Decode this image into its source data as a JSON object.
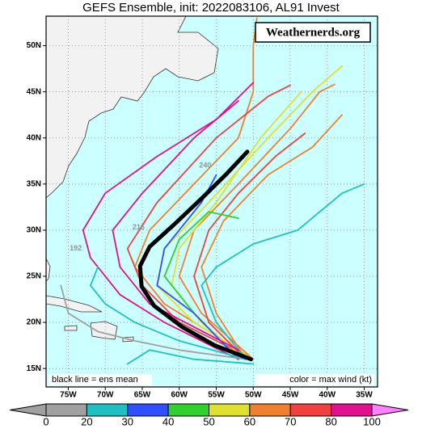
{
  "chart_data": {
    "type": "track-map",
    "title": "GEFS Ensemble, init: 2022083106, AL91 Invest",
    "watermark": "Weathernerds.org",
    "note_left": "black line = ens mean",
    "note_right": "color = max wind (kt)",
    "xlim": [
      -78,
      -33.2
    ],
    "ylim": [
      13,
      53.2
    ],
    "xticks": [
      {
        "value": -75,
        "label": "75W"
      },
      {
        "value": -70,
        "label": "70W"
      },
      {
        "value": -65,
        "label": "65W"
      },
      {
        "value": -60,
        "label": "60W"
      },
      {
        "value": -55,
        "label": "55W"
      },
      {
        "value": -50,
        "label": "50W"
      },
      {
        "value": -45,
        "label": "45W"
      },
      {
        "value": -40,
        "label": "40W"
      },
      {
        "value": -35,
        "label": "35W"
      }
    ],
    "yticks": [
      {
        "value": 15,
        "label": "15N"
      },
      {
        "value": 20,
        "label": "20N"
      },
      {
        "value": 25,
        "label": "25N"
      },
      {
        "value": 30,
        "label": "30N"
      },
      {
        "value": 35,
        "label": "35N"
      },
      {
        "value": 40,
        "label": "40N"
      },
      {
        "value": 45,
        "label": "45N"
      },
      {
        "value": 50,
        "label": "50N"
      }
    ],
    "grid": true,
    "mean_track": {
      "color": "#000000",
      "lon": [
        -50.3,
        -55.2,
        -59.6,
        -63.4,
        -65.1,
        -65.3,
        -64,
        -60.7,
        -56.9,
        -53.6,
        -50.8
      ],
      "lat": [
        16,
        17.5,
        19.5,
        21.8,
        23.9,
        26.1,
        28.2,
        30.6,
        33.5,
        36.1,
        38.5
      ]
    },
    "series": [
      {
        "color": "#f08030",
        "lon": [
          -50,
          -62,
          -66,
          -64,
          -58,
          -52,
          -50,
          -50,
          -49.5
        ],
        "lat": [
          16,
          22,
          26,
          30,
          35,
          40,
          45,
          50,
          53
        ]
      },
      {
        "color": "#f04040",
        "lon": [
          -50,
          -60,
          -65,
          -67,
          -63,
          -55,
          -48,
          -45
        ],
        "lat": [
          16,
          20,
          24,
          28,
          33,
          40,
          44.5,
          45.7
        ]
      },
      {
        "color": "#e0e030",
        "lon": [
          -50,
          -58,
          -63,
          -62,
          -56,
          -48,
          -42,
          -38
        ],
        "lat": [
          16,
          20,
          24,
          28,
          33,
          40,
          45,
          47.8
        ]
      },
      {
        "color": "#f08030",
        "lon": [
          -50,
          -57,
          -60,
          -58,
          -52,
          -45,
          -41,
          -39
        ],
        "lat": [
          16,
          21,
          25,
          30,
          35,
          41,
          45,
          45.8
        ]
      },
      {
        "color": "#e0e030",
        "lon": [
          -51,
          -57,
          -61,
          -60,
          -55,
          -49,
          -43.5
        ],
        "lat": [
          16,
          20,
          24,
          28,
          33,
          40,
          45
        ]
      },
      {
        "color": "#f04040",
        "lon": [
          -51,
          -56,
          -58,
          -56,
          -52,
          -47,
          -43
        ],
        "lat": [
          16,
          20,
          25,
          30,
          34,
          38,
          40.5
        ]
      },
      {
        "color": "#f08030",
        "lon": [
          -51,
          -55,
          -57,
          -54,
          -48,
          -42,
          -38
        ],
        "lat": [
          16,
          21,
          26,
          31,
          36,
          39,
          42.5
        ]
      },
      {
        "color": "#20c0c0",
        "lon": [
          -51,
          -55,
          -57,
          -55,
          -50,
          -44,
          -38,
          -35
        ],
        "lat": [
          16,
          20,
          24,
          26,
          28.5,
          30,
          34,
          35
        ]
      },
      {
        "color": "#30d030",
        "lon": [
          -52,
          -58,
          -62,
          -60,
          -56,
          -52
        ],
        "lat": [
          16,
          21,
          25,
          29,
          32,
          31.3
        ]
      },
      {
        "color": "#3050ff",
        "lon": [
          -52,
          -58,
          -63,
          -62,
          -57,
          -55
        ],
        "lat": [
          16,
          21,
          24,
          28,
          33,
          36
        ]
      },
      {
        "color": "#e0108f",
        "lon": [
          -52,
          -62,
          -68,
          -72,
          -73,
          -70,
          -63,
          -55,
          -50
        ],
        "lat": [
          16,
          20,
          23,
          27,
          30,
          34,
          38,
          42,
          46
        ]
      },
      {
        "color": "#a0a0a0",
        "lon": [
          -51,
          -60,
          -66,
          -71,
          -75,
          -76
        ],
        "lat": [
          16,
          17,
          18,
          19,
          21,
          24
        ]
      },
      {
        "color": "#20c0c0",
        "lon": [
          -51,
          -60,
          -66,
          -70,
          -72,
          -71
        ],
        "lat": [
          16,
          18,
          20,
          22,
          24,
          26
        ]
      },
      {
        "color": "#20c0c0",
        "lon": [
          -50,
          -58,
          -64,
          -67
        ],
        "lat": [
          15.5,
          16,
          17,
          15.5
        ]
      },
      {
        "color": "#e0108f",
        "lon": [
          -52,
          -64,
          -68,
          -69,
          -65,
          -58,
          -52
        ],
        "lat": [
          17,
          22,
          26,
          30,
          34,
          40,
          44
        ]
      }
    ],
    "hour_labels": [
      {
        "text": "216",
        "lon": -65.5,
        "lat": 30.3
      },
      {
        "text": "192",
        "lon": -74,
        "lat": 28
      },
      {
        "text": "240",
        "lon": -56.5,
        "lat": 37
      }
    ],
    "colorbar": {
      "ticks": [
        0,
        20,
        30,
        40,
        50,
        60,
        70,
        80,
        100
      ],
      "colors": [
        "#a0a0a0",
        "#20c0c0",
        "#3050ff",
        "#30d030",
        "#e0e030",
        "#f08030",
        "#f04040",
        "#e0108f"
      ],
      "under_color": "#a0a0a0",
      "over_color": "#ff80ff"
    }
  }
}
